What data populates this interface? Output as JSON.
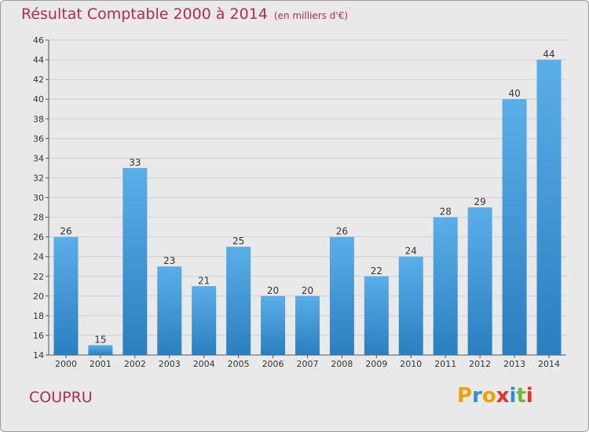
{
  "title": "Résultat Comptable 2000 à 2014",
  "subtitle": "(en milliers d'€)",
  "commune": "COUPRU",
  "logo": {
    "letters": [
      "P",
      "r",
      "o",
      "x",
      "i",
      "t",
      "i"
    ],
    "colors": [
      "#f2a100",
      "#2e8fd6",
      "#f2a100",
      "#e5322d",
      "#2e8fd6",
      "#6dbb2e",
      "#e5322d"
    ]
  },
  "colors": {
    "title": "#b5295a",
    "bar_light": "#5aaee8",
    "bar_dark": "#2a7fc0",
    "background": "#e9e9e9"
  },
  "chart_data": {
    "type": "bar",
    "categories": [
      "2000",
      "2001",
      "2002",
      "2003",
      "2004",
      "2005",
      "2006",
      "2007",
      "2008",
      "2009",
      "2010",
      "2011",
      "2012",
      "2013",
      "2014"
    ],
    "values": [
      26,
      15,
      33,
      23,
      21,
      25,
      20,
      20,
      26,
      22,
      24,
      28,
      29,
      40,
      44
    ],
    "title": "Résultat Comptable 2000 à 2014",
    "subtitle": "(en milliers d'€)",
    "xlabel": "",
    "ylabel": "",
    "ylim": [
      14,
      46
    ],
    "yticks": [
      14,
      16,
      18,
      20,
      22,
      24,
      26,
      28,
      30,
      32,
      34,
      36,
      38,
      40,
      42,
      44,
      46
    ],
    "grid": true
  }
}
